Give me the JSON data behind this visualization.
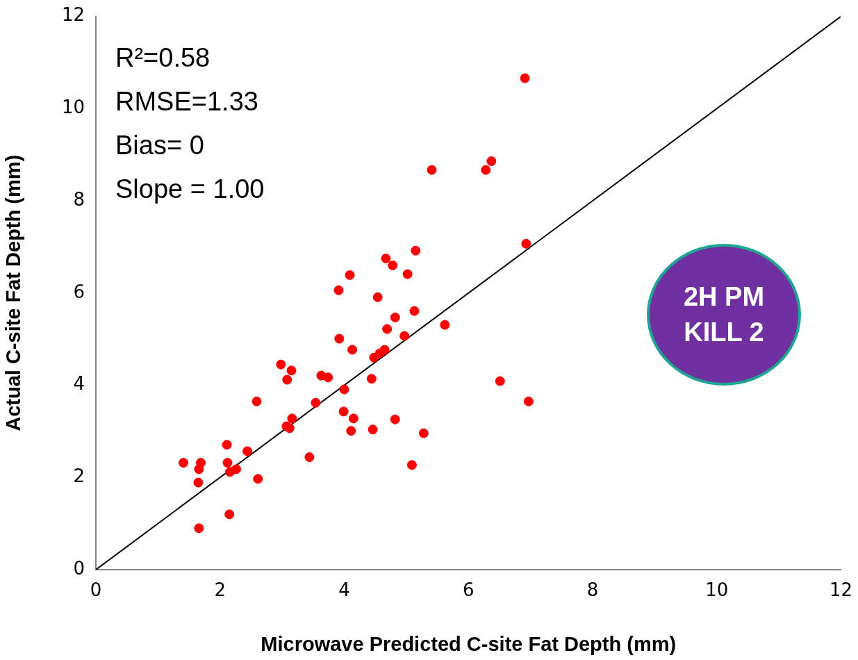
{
  "chart_data": {
    "type": "scatter",
    "xlabel": "Microwave Predicted C-site Fat Depth (mm)",
    "ylabel": "Actual C-site Fat Depth (mm)",
    "xlim": [
      0,
      12
    ],
    "ylim": [
      0,
      12
    ],
    "xticks": [
      0,
      2,
      4,
      6,
      8,
      10,
      12
    ],
    "yticks": [
      0,
      2,
      4,
      6,
      8,
      10,
      12
    ],
    "grid": false,
    "legend": false,
    "marker": "circle",
    "annotations": [
      "R²=0.58",
      "RMSE=1.33",
      "Bias= 0",
      "Slope = 1.00",
      "2H PM\nKILL 2"
    ],
    "series": [
      {
        "color": "#ff0000",
        "x": [
          5.15,
          4.67,
          4.78,
          5.02,
          4.09,
          3.91,
          4.54,
          5.13,
          4.82,
          4.69,
          5.62,
          4.97,
          3.92,
          4.13,
          4.65,
          4.57,
          4.48,
          2.98,
          3.15,
          3.08,
          3.63,
          3.74,
          4.44,
          4.0,
          2.59,
          3.54,
          3.99,
          4.15,
          4.82,
          3.16,
          3.07,
          3.12,
          4.11,
          4.46,
          5.28,
          2.11,
          2.44,
          1.41,
          1.69,
          1.66,
          2.12,
          2.26,
          2.16,
          3.44,
          5.09,
          2.61,
          1.65,
          1.66,
          2.15,
          5.41,
          6.28,
          6.37,
          6.91,
          6.93,
          6.51,
          6.97
        ],
        "values": [
          6.92,
          6.75,
          6.6,
          6.41,
          6.39,
          6.06,
          5.91,
          5.61,
          5.47,
          5.22,
          5.31,
          5.07,
          5.01,
          4.77,
          4.77,
          4.69,
          4.6,
          4.45,
          4.32,
          4.12,
          4.21,
          4.17,
          4.14,
          3.91,
          3.65,
          3.62,
          3.43,
          3.28,
          3.26,
          3.28,
          3.11,
          3.07,
          3.01,
          3.04,
          2.96,
          2.71,
          2.57,
          2.32,
          2.32,
          2.18,
          2.32,
          2.18,
          2.12,
          2.44,
          2.27,
          1.97,
          1.89,
          0.9,
          1.2,
          8.67,
          8.67,
          8.86,
          10.66,
          7.07,
          4.09,
          3.65
        ]
      },
      {
        "type": "line",
        "color": "#000000",
        "line_style": "solid",
        "marker": "none",
        "x": [
          0,
          12
        ],
        "values": [
          0,
          12
        ]
      }
    ]
  }
}
